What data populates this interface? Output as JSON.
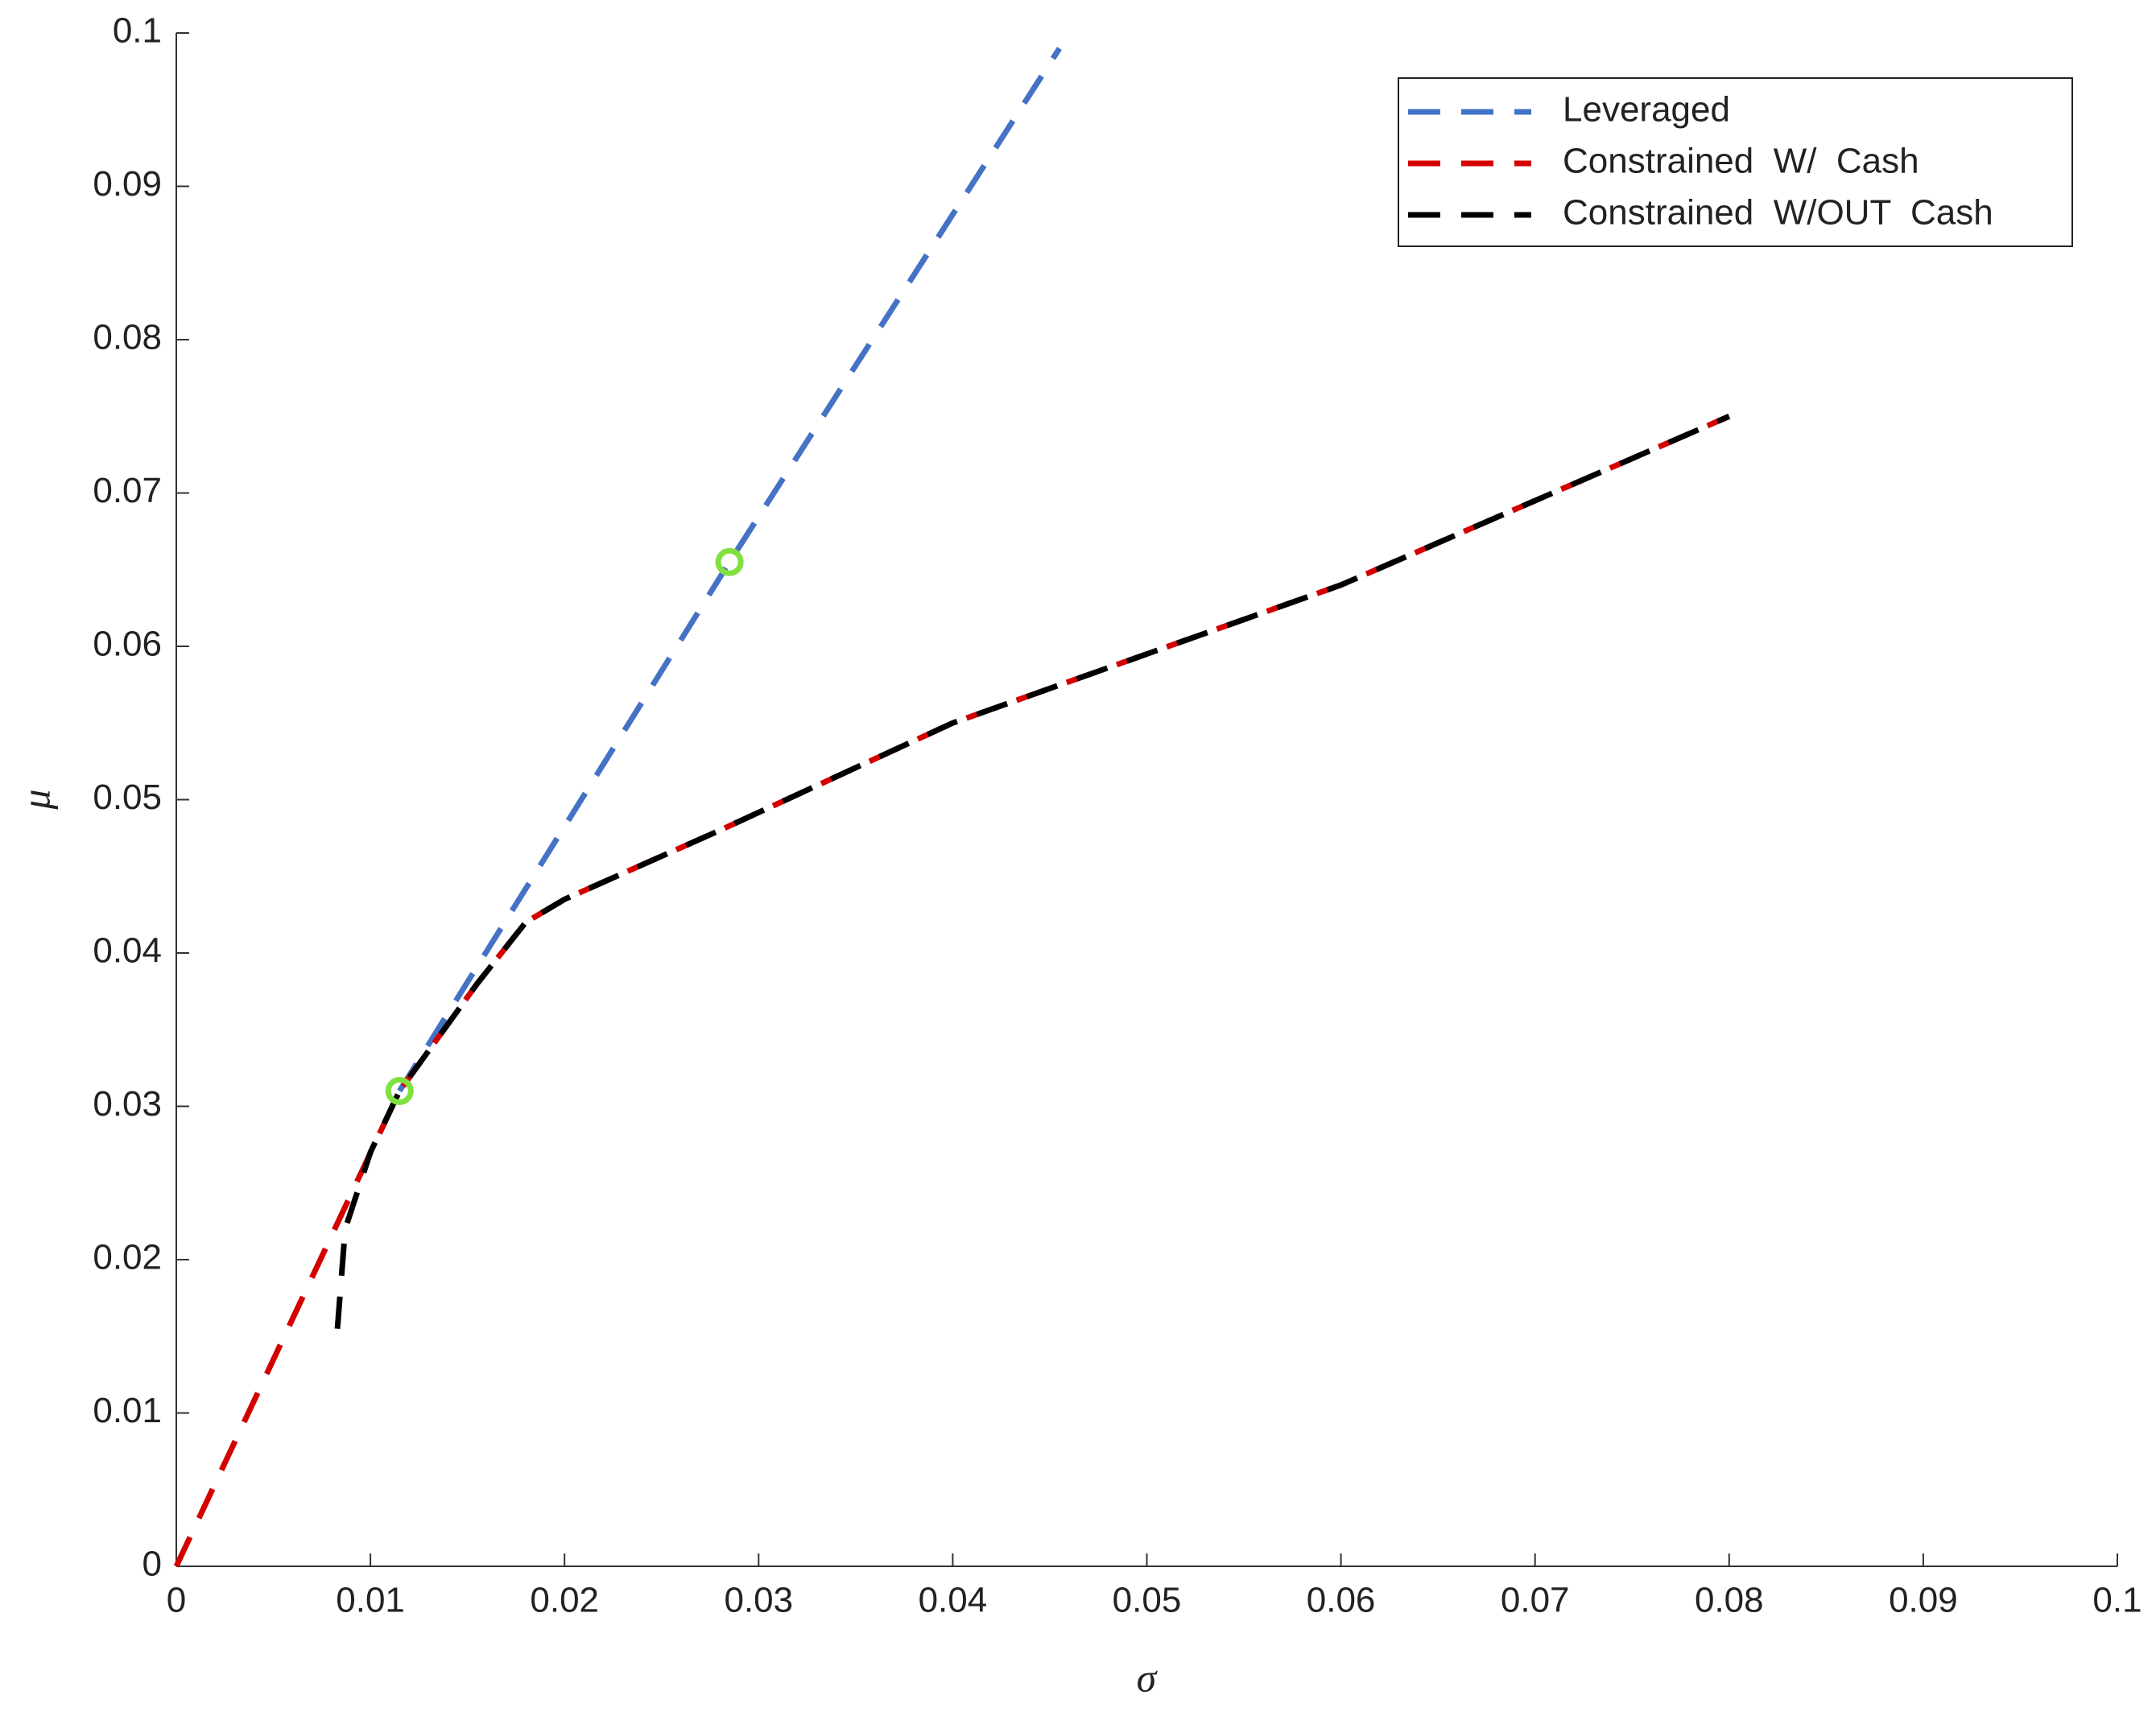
{
  "chart_data": {
    "type": "line",
    "xlabel": "σ",
    "ylabel": "μ",
    "xlim": [
      0,
      0.1
    ],
    "ylim": [
      0,
      0.1
    ],
    "xticks": [
      0,
      0.01,
      0.02,
      0.03,
      0.04,
      0.05,
      0.06,
      0.07,
      0.08,
      0.09,
      0.1
    ],
    "yticks": [
      0,
      0.01,
      0.02,
      0.03,
      0.04,
      0.05,
      0.06,
      0.07,
      0.08,
      0.09,
      0.1
    ],
    "legend": "upper right",
    "dashed": true,
    "series": [
      {
        "name": "Leveraged",
        "color": "#4472c4",
        "x": [
          0.0115,
          0.0285,
          0.0455
        ],
        "values": [
          0.031,
          0.0655,
          0.099
        ]
      },
      {
        "name": "Constrained  W/  Cash",
        "color": "#d40000",
        "x": [
          0,
          0.0115,
          0.0155,
          0.018,
          0.02,
          0.028,
          0.04,
          0.06,
          0.08
        ],
        "values": [
          0,
          0.031,
          0.038,
          0.042,
          0.0435,
          0.048,
          0.055,
          0.064,
          0.075
        ]
      },
      {
        "name": "Constrained  W/OUT  Cash",
        "color": "#000000",
        "x": [
          0.0083,
          0.0087,
          0.01,
          0.0115,
          0.0155,
          0.018,
          0.02,
          0.028,
          0.04,
          0.06,
          0.08
        ],
        "values": [
          0.0155,
          0.022,
          0.027,
          0.031,
          0.038,
          0.042,
          0.0435,
          0.048,
          0.055,
          0.064,
          0.075
        ]
      }
    ],
    "markers": {
      "color": "#80e040",
      "x": [
        0.0115,
        0.0285
      ],
      "values": [
        0.031,
        0.0655
      ]
    }
  }
}
